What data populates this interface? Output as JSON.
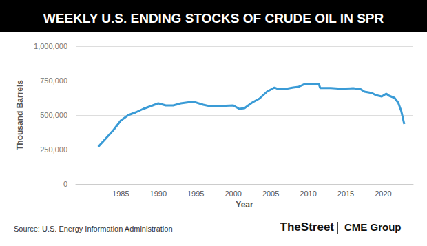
{
  "chart_data": {
    "type": "line",
    "title": "WEEKLY U.S. ENDING STOCKS OF CRUDE OIL IN SPR",
    "x_label": "Year",
    "y_label": "Thousand Barrels",
    "x": [
      1982.0,
      1983.0,
      1984.0,
      1985.0,
      1986.0,
      1987.0,
      1988.0,
      1989.0,
      1990.0,
      1991.0,
      1992.0,
      1993.0,
      1994.0,
      1995.0,
      1996.0,
      1997.0,
      1998.0,
      1999.0,
      2000.0,
      2000.8,
      2001.5,
      2002.5,
      2003.5,
      2004.5,
      2005.5,
      2006.0,
      2007.0,
      2008.0,
      2008.7,
      2009.5,
      2010.5,
      2011.4,
      2011.6,
      2013.0,
      2014.0,
      2015.0,
      2016.0,
      2017.0,
      2017.5,
      2018.5,
      2019.0,
      2019.8,
      2020.4,
      2020.8,
      2021.5,
      2022.0,
      2022.4,
      2022.8
    ],
    "values": [
      270000,
      330000,
      390000,
      460000,
      500000,
      520000,
      545000,
      565000,
      585000,
      570000,
      570000,
      585000,
      592000,
      592000,
      575000,
      563000,
      563000,
      568000,
      570000,
      545000,
      550000,
      590000,
      620000,
      670000,
      700000,
      688000,
      690000,
      700000,
      705000,
      724000,
      727000,
      727000,
      696000,
      696000,
      692000,
      692000,
      695000,
      688000,
      670000,
      660000,
      645000,
      635000,
      655000,
      640000,
      625000,
      590000,
      530000,
      435000
    ],
    "color": "#3a9bd6",
    "xlim": [
      1979,
      2024
    ],
    "xticks": [
      1985,
      1990,
      1995,
      2000,
      2005,
      2010,
      2015,
      2020
    ],
    "ylim": [
      0,
      1000000
    ],
    "yticks": [
      0,
      {
        "value": 250000,
        "label": "250,000"
      },
      {
        "value": 500000,
        "label": "500,000"
      },
      {
        "value": 750000,
        "label": "750,000"
      },
      {
        "value": 1000000,
        "label": "1,000,000"
      }
    ],
    "grid": true,
    "source": "Source: U.S. Energy Information Administration",
    "logos": [
      "TheStreet",
      "CME Group"
    ]
  }
}
